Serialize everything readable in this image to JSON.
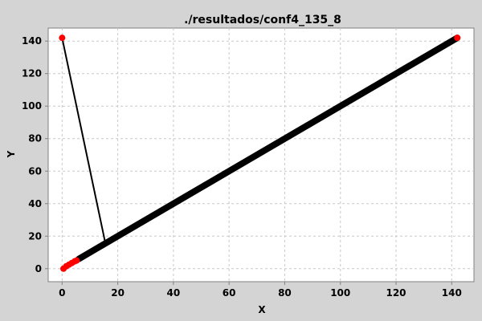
{
  "chart_data": {
    "type": "line",
    "title": "./resultados/conf4_135_8",
    "xlabel": "X",
    "ylabel": "Y",
    "xlim": [
      -5,
      148
    ],
    "ylim": [
      -8,
      148
    ],
    "x_ticks": [
      0,
      20,
      40,
      60,
      80,
      100,
      120,
      140
    ],
    "y_ticks": [
      0,
      20,
      40,
      60,
      80,
      100,
      120,
      140
    ],
    "grid": true,
    "legend": "none",
    "series": [
      {
        "style": "connector",
        "color": "#000000",
        "points": [
          [
            0,
            142
          ],
          [
            15.5,
            16
          ]
        ]
      },
      {
        "style": "thick-diagonal",
        "color": "#000000",
        "points": [
          [
            6,
            6
          ],
          [
            142,
            142
          ]
        ]
      },
      {
        "style": "markers",
        "color": "#ff0000",
        "points": [
          [
            0,
            142
          ],
          [
            142,
            142
          ],
          [
            0.5,
            0
          ],
          [
            1.5,
            1.5
          ],
          [
            2.5,
            2.5
          ],
          [
            3.5,
            3.5
          ],
          [
            4.5,
            4.5
          ],
          [
            5.2,
            5
          ]
        ]
      }
    ],
    "colors": {
      "background": "#d4d4d4",
      "plot_background": "#ffffff",
      "grid": "#c8c8c8",
      "line": "#000000",
      "marker": "#ff0000"
    }
  }
}
